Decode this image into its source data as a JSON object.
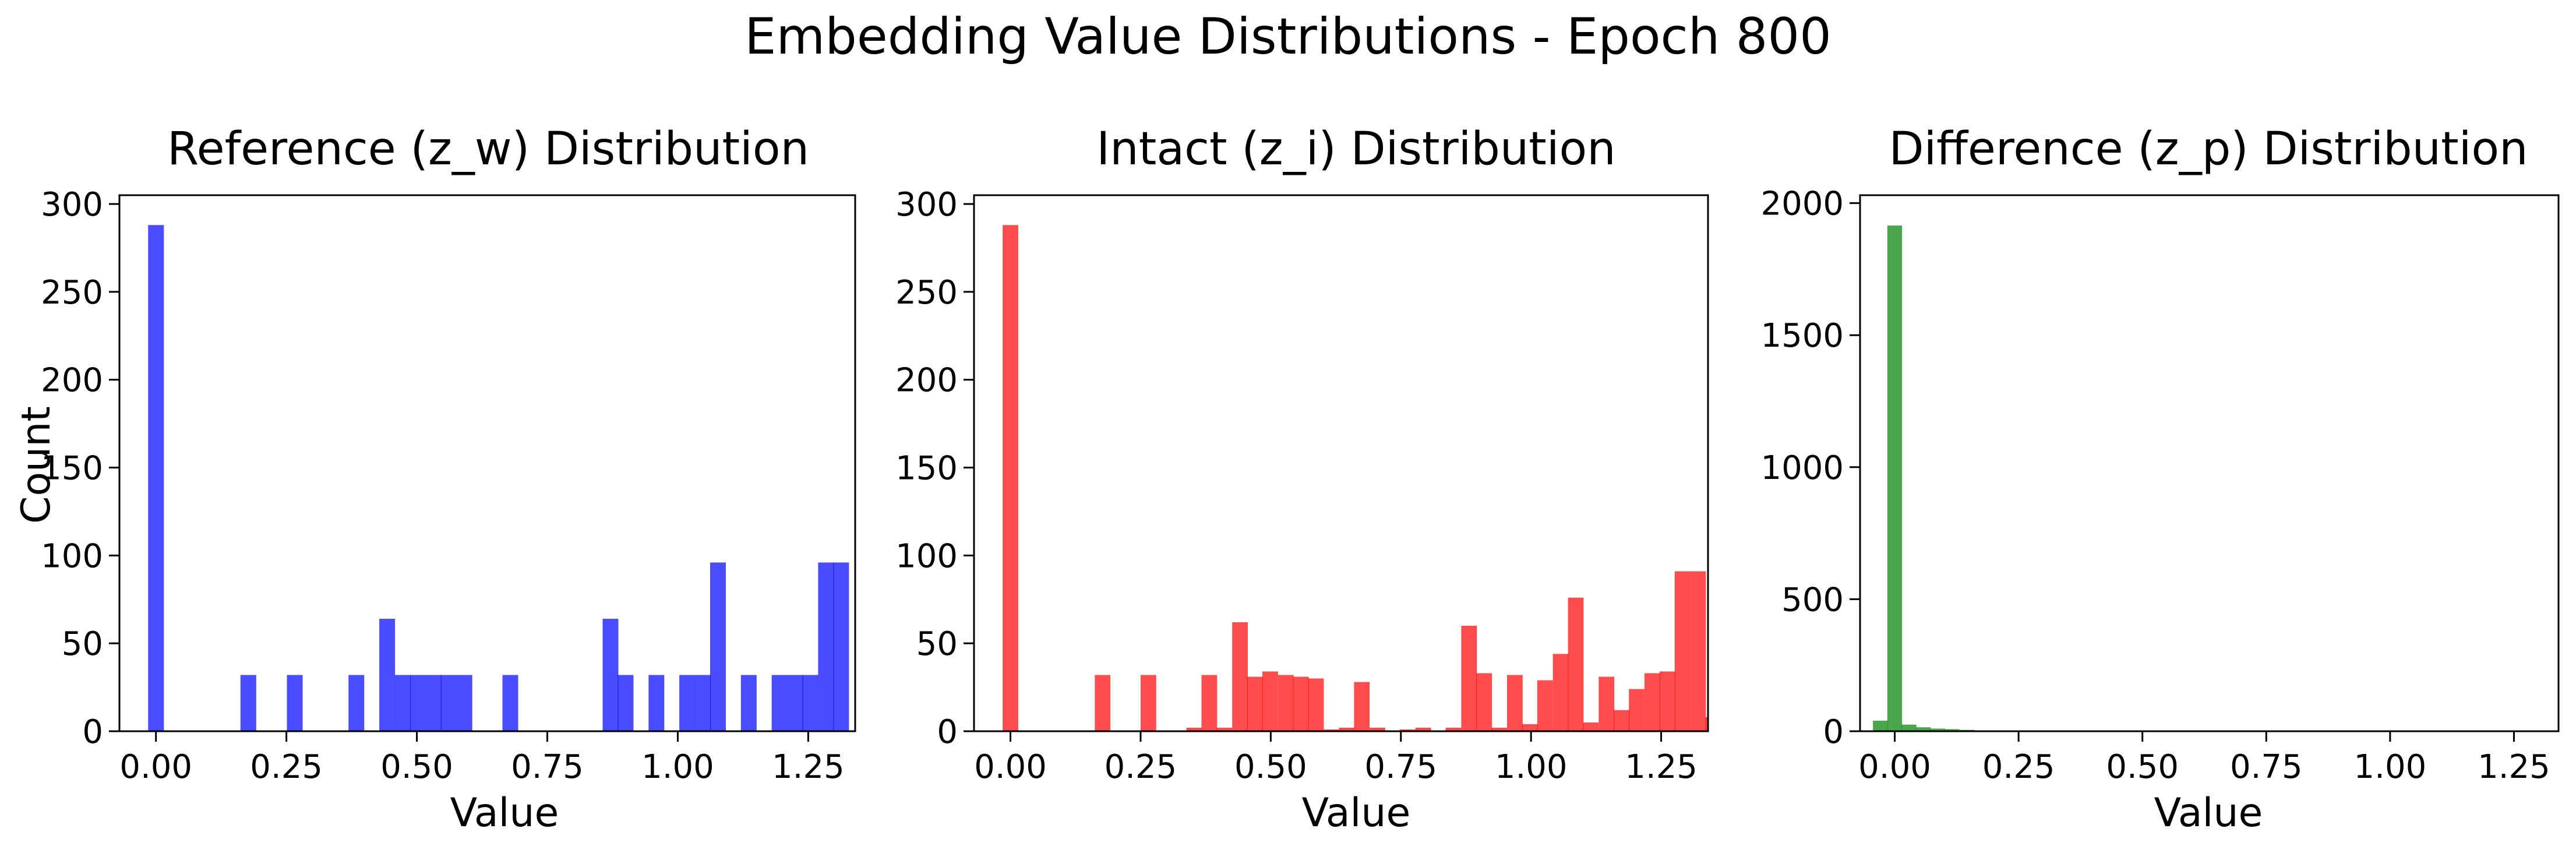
{
  "figure": {
    "title": "Embedding Value Distributions - Epoch 800"
  },
  "chart_data": [
    {
      "type": "bar",
      "title": "Reference (z_w) Distribution",
      "xlabel": "Value",
      "ylabel": "Count",
      "color": "#0000ff",
      "xlim": [
        -0.07,
        1.34
      ],
      "ylim": [
        0,
        305
      ],
      "xticks": [
        0.0,
        0.25,
        0.5,
        0.75,
        1.0,
        1.25
      ],
      "xtick_labels": [
        "0.00",
        "0.25",
        "0.50",
        "0.75",
        "1.00",
        "1.25"
      ],
      "yticks": [
        0,
        50,
        100,
        150,
        200,
        250,
        300
      ],
      "ytick_labels": [
        "0",
        "50",
        "100",
        "150",
        "200",
        "250",
        "300"
      ],
      "bin_width": 0.0295,
      "bins": [
        {
          "x": -0.015,
          "count": 288
        },
        {
          "x": 0.162,
          "count": 32
        },
        {
          "x": 0.251,
          "count": 32
        },
        {
          "x": 0.369,
          "count": 32
        },
        {
          "x": 0.428,
          "count": 64
        },
        {
          "x": 0.458,
          "count": 32
        },
        {
          "x": 0.487,
          "count": 32
        },
        {
          "x": 0.517,
          "count": 32
        },
        {
          "x": 0.546,
          "count": 32
        },
        {
          "x": 0.576,
          "count": 32
        },
        {
          "x": 0.664,
          "count": 32
        },
        {
          "x": 0.856,
          "count": 64
        },
        {
          "x": 0.885,
          "count": 32
        },
        {
          "x": 0.944,
          "count": 32
        },
        {
          "x": 1.003,
          "count": 32
        },
        {
          "x": 1.033,
          "count": 32
        },
        {
          "x": 1.062,
          "count": 96
        },
        {
          "x": 1.121,
          "count": 32
        },
        {
          "x": 1.18,
          "count": 32
        },
        {
          "x": 1.21,
          "count": 32
        },
        {
          "x": 1.239,
          "count": 32
        },
        {
          "x": 1.269,
          "count": 96
        },
        {
          "x": 1.298,
          "count": 96
        }
      ]
    },
    {
      "type": "bar",
      "title": "Intact (z_i) Distribution",
      "xlabel": "Value",
      "ylabel": "",
      "color": "#ff0000",
      "xlim": [
        -0.07,
        1.34
      ],
      "ylim": [
        0,
        305
      ],
      "xticks": [
        0.0,
        0.25,
        0.5,
        0.75,
        1.0,
        1.25
      ],
      "xtick_labels": [
        "0.00",
        "0.25",
        "0.50",
        "0.75",
        "1.00",
        "1.25"
      ],
      "yticks": [
        0,
        50,
        100,
        150,
        200,
        250,
        300
      ],
      "ytick_labels": [
        "0",
        "50",
        "100",
        "150",
        "200",
        "250",
        "300"
      ],
      "bin_width": 0.0293,
      "bins": [
        {
          "x": -0.015,
          "count": 288
        },
        {
          "x": 0.162,
          "count": 32
        },
        {
          "x": 0.25,
          "count": 32
        },
        {
          "x": 0.338,
          "count": 2
        },
        {
          "x": 0.367,
          "count": 32
        },
        {
          "x": 0.396,
          "count": 2
        },
        {
          "x": 0.426,
          "count": 62
        },
        {
          "x": 0.455,
          "count": 31
        },
        {
          "x": 0.484,
          "count": 34
        },
        {
          "x": 0.514,
          "count": 32
        },
        {
          "x": 0.543,
          "count": 31
        },
        {
          "x": 0.572,
          "count": 30
        },
        {
          "x": 0.602,
          "count": 1
        },
        {
          "x": 0.631,
          "count": 2
        },
        {
          "x": 0.66,
          "count": 28
        },
        {
          "x": 0.69,
          "count": 2
        },
        {
          "x": 0.748,
          "count": 1
        },
        {
          "x": 0.778,
          "count": 2
        },
        {
          "x": 0.836,
          "count": 2
        },
        {
          "x": 0.866,
          "count": 60
        },
        {
          "x": 0.895,
          "count": 33
        },
        {
          "x": 0.924,
          "count": 2
        },
        {
          "x": 0.954,
          "count": 32
        },
        {
          "x": 0.983,
          "count": 4
        },
        {
          "x": 1.012,
          "count": 29
        },
        {
          "x": 1.042,
          "count": 44
        },
        {
          "x": 1.071,
          "count": 76
        },
        {
          "x": 1.1,
          "count": 5
        },
        {
          "x": 1.13,
          "count": 31
        },
        {
          "x": 1.159,
          "count": 12
        },
        {
          "x": 1.188,
          "count": 24
        },
        {
          "x": 1.218,
          "count": 33
        },
        {
          "x": 1.247,
          "count": 34
        },
        {
          "x": 1.276,
          "count": 91
        },
        {
          "x": 1.306,
          "count": 91
        },
        {
          "x": 1.335,
          "count": 8
        }
      ]
    },
    {
      "type": "bar",
      "title": "Difference (z_p) Distribution",
      "xlabel": "Value",
      "ylabel": "",
      "color": "#008000",
      "xlim": [
        -0.07,
        1.34
      ],
      "ylim": [
        0,
        2030
      ],
      "xticks": [
        0.0,
        0.25,
        0.5,
        0.75,
        1.0,
        1.25
      ],
      "xtick_labels": [
        "0.00",
        "0.25",
        "0.50",
        "0.75",
        "1.00",
        "1.25"
      ],
      "yticks": [
        0,
        500,
        1000,
        1500,
        2000
      ],
      "ytick_labels": [
        "0",
        "500",
        "1000",
        "1500",
        "2000"
      ],
      "bin_width": 0.0291,
      "bins": [
        {
          "x": -0.044,
          "count": 40
        },
        {
          "x": -0.015,
          "count": 1915
        },
        {
          "x": 0.014,
          "count": 25
        },
        {
          "x": 0.043,
          "count": 15
        },
        {
          "x": 0.072,
          "count": 10
        },
        {
          "x": 0.101,
          "count": 8
        },
        {
          "x": 0.131,
          "count": 5
        },
        {
          "x": 0.16,
          "count": 3
        },
        {
          "x": 0.189,
          "count": 2
        },
        {
          "x": 0.218,
          "count": 2
        },
        {
          "x": 0.247,
          "count": 1
        },
        {
          "x": 0.276,
          "count": 1
        },
        {
          "x": 0.305,
          "count": 1
        }
      ]
    }
  ]
}
